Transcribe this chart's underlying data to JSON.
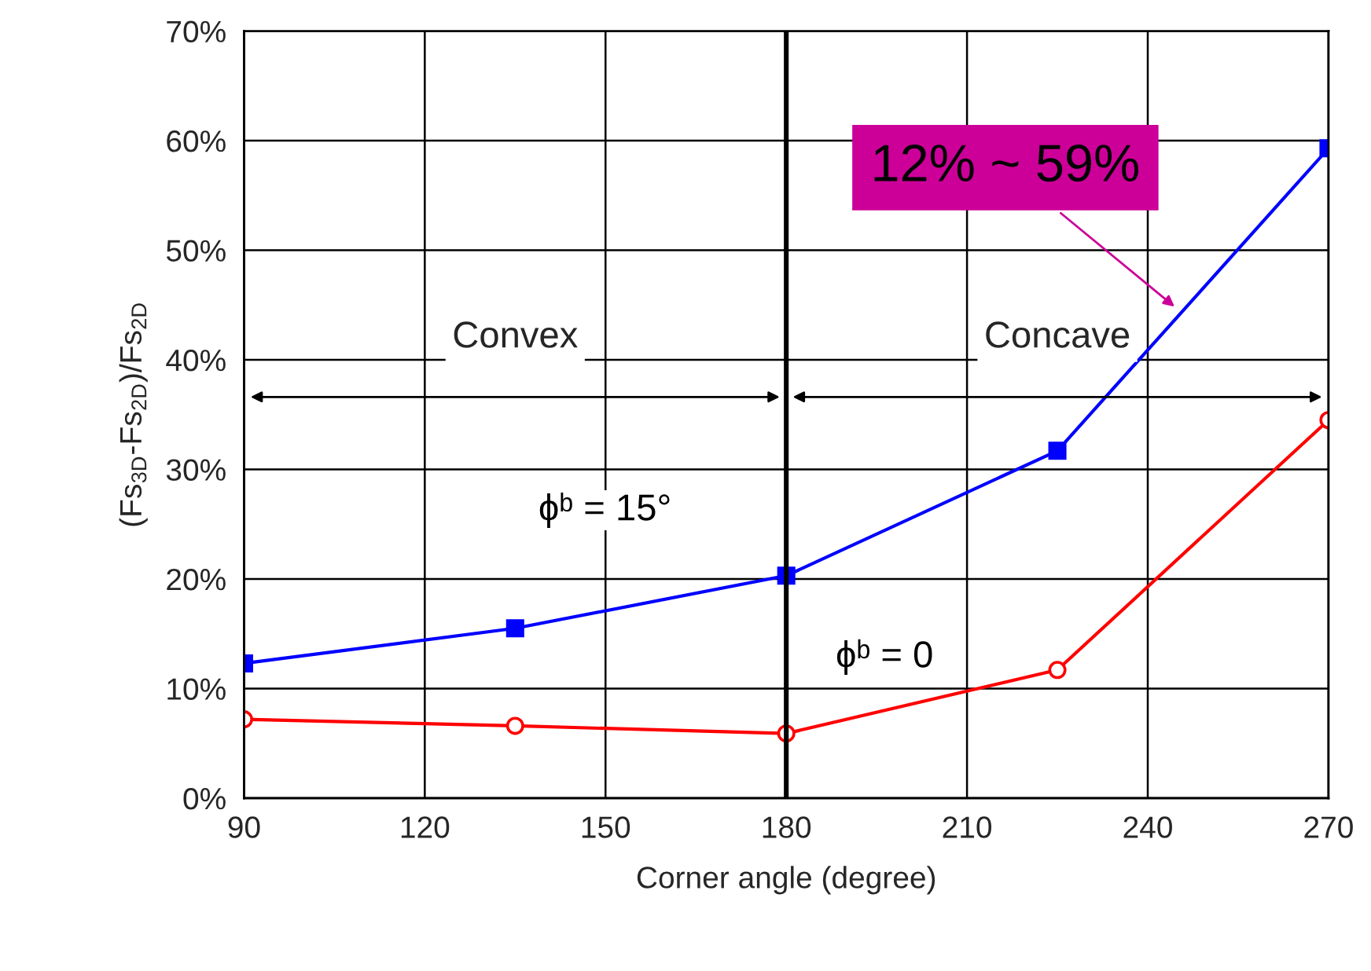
{
  "chart_data": {
    "type": "line",
    "xlabel": "Corner angle (degree)",
    "ylabel": "(Fs$_{3D}$-Fs$_{2D}$)/Fs$_{2D}$",
    "x": [
      90,
      135,
      180,
      225,
      270
    ],
    "series": [
      {
        "name": "ϕᵇ = 15°",
        "color": "#0000ff",
        "marker": "square",
        "values": [
          12.3,
          15.5,
          20.3,
          31.7,
          59.3
        ]
      },
      {
        "name": "ϕᵇ = 0",
        "color": "#ff0000",
        "marker": "circle",
        "values": [
          7.2,
          6.6,
          5.9,
          11.7,
          34.5
        ]
      }
    ],
    "xlim": [
      90,
      270
    ],
    "xticks": [
      90,
      120,
      150,
      180,
      210,
      240,
      270
    ],
    "ylim": [
      0,
      70
    ],
    "yticks": [
      {
        "value": 0,
        "label": "0%"
      },
      {
        "value": 10,
        "label": "10%"
      },
      {
        "value": 20,
        "label": "20%"
      },
      {
        "value": 30,
        "label": "30%"
      },
      {
        "value": 40,
        "label": "40%"
      },
      {
        "value": 50,
        "label": "50%"
      },
      {
        "value": 60,
        "label": "60%"
      },
      {
        "value": 70,
        "label": "70%"
      }
    ],
    "ref_lines": [
      {
        "axis": "x",
        "value": 180,
        "color": "#000000"
      }
    ],
    "annotations": [
      {
        "text": "12% ~ 59%",
        "x": 245,
        "y": 44.6
      },
      "Convex",
      "Concave"
    ],
    "grid": true,
    "legend": false,
    "line_style": "solid"
  }
}
